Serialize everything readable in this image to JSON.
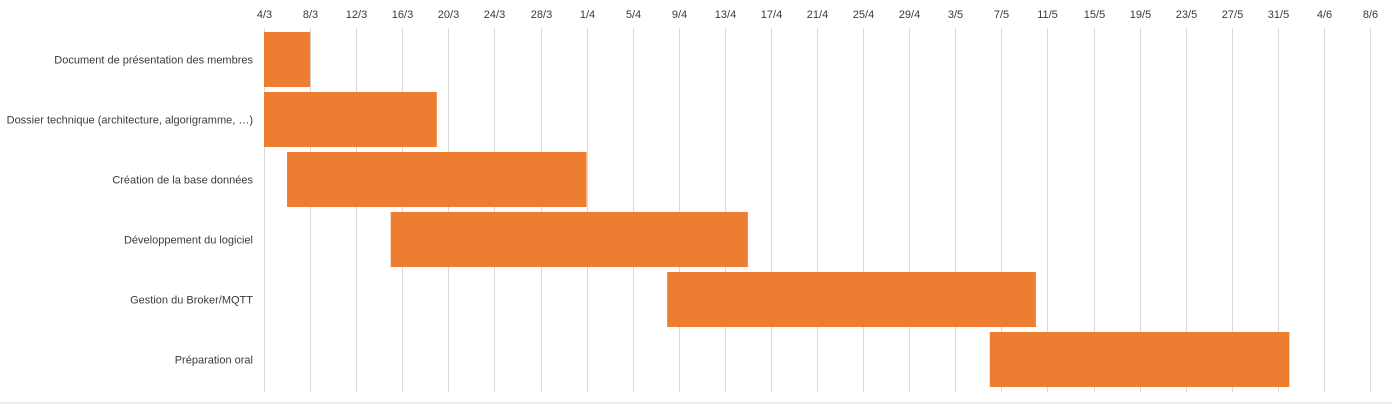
{
  "chart_data": {
    "type": "bar",
    "orientation": "horizontal",
    "stacked_gantt": true,
    "title": "",
    "xlabel": "",
    "ylabel": "",
    "x_axis_position": "top",
    "grid": true,
    "legend": "none",
    "bar_color": "#ED7D31",
    "gridline_color": "#D9D9D9",
    "xlim": [
      "2020-03-04",
      "2020-06-08"
    ],
    "x_tick_labels": [
      "4/3",
      "8/3",
      "12/3",
      "16/3",
      "20/3",
      "24/3",
      "28/3",
      "1/4",
      "5/4",
      "9/4",
      "13/4",
      "17/4",
      "21/4",
      "25/4",
      "29/4",
      "3/5",
      "7/5",
      "11/5",
      "15/5",
      "19/5",
      "23/5",
      "27/5",
      "31/5",
      "4/6",
      "8/6"
    ],
    "x_ticks": [
      "2020-03-04",
      "2020-03-08",
      "2020-03-12",
      "2020-03-16",
      "2020-03-20",
      "2020-03-24",
      "2020-03-28",
      "2020-04-01",
      "2020-04-05",
      "2020-04-09",
      "2020-04-13",
      "2020-04-17",
      "2020-04-21",
      "2020-04-25",
      "2020-04-29",
      "2020-05-03",
      "2020-05-07",
      "2020-05-11",
      "2020-05-15",
      "2020-05-19",
      "2020-05-23",
      "2020-05-27",
      "2020-05-31",
      "2020-06-04",
      "2020-06-08"
    ],
    "tasks": [
      {
        "label": "Document de présentation des membres",
        "start": "2020-03-04",
        "end": "2020-03-08"
      },
      {
        "label": "Dossier technique (architecture, algorigramme, …)",
        "start": "2020-03-04",
        "end": "2020-03-19"
      },
      {
        "label": "Création de la base données",
        "start": "2020-03-06",
        "end": "2020-04-01"
      },
      {
        "label": "Développement du logiciel",
        "start": "2020-03-15",
        "end": "2020-04-15"
      },
      {
        "label": "Gestion du Broker/MQTT",
        "start": "2020-04-08",
        "end": "2020-05-10"
      },
      {
        "label": "Préparation oral",
        "start": "2020-05-06",
        "end": "2020-06-01"
      }
    ]
  }
}
